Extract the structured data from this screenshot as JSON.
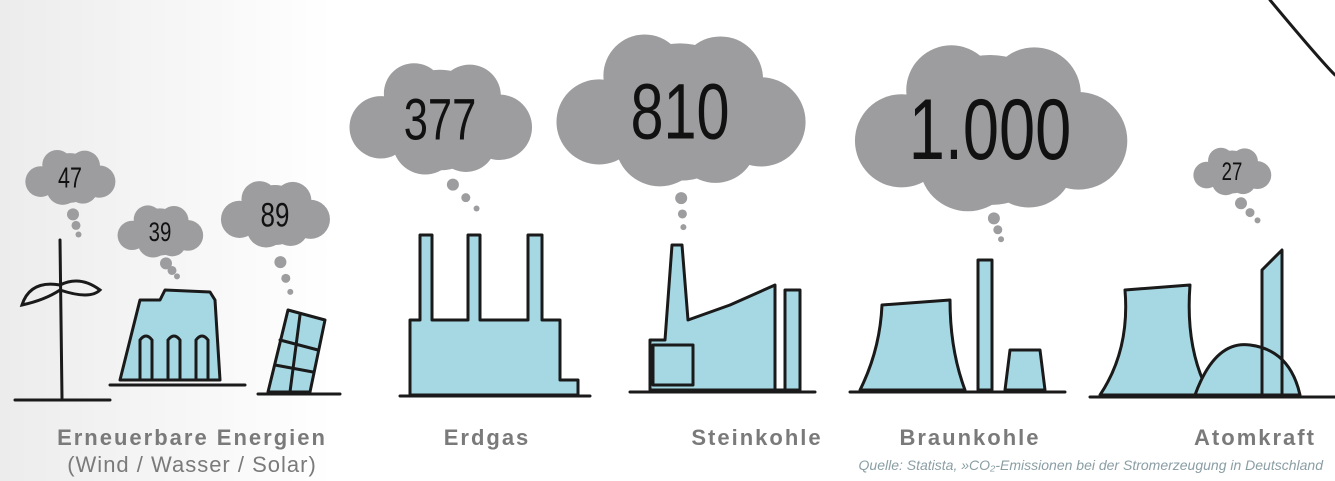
{
  "chart_data": {
    "type": "cloud-pictogram",
    "groups": [
      {
        "label": "Erneuerbare Energien",
        "sublabel": "(Wind / Wasser / Solar)",
        "values": [
          47,
          39,
          89
        ]
      },
      {
        "label": "Erdgas",
        "values": [
          377
        ]
      },
      {
        "label": "Steinkohle",
        "values": [
          810
        ]
      },
      {
        "label": "Braunkohle",
        "values": [
          1000
        ],
        "value_labels": [
          "1.000"
        ]
      },
      {
        "label": "Atomkraft",
        "values": [
          27
        ]
      }
    ],
    "color": "#9d9d9f",
    "source": "Quelle: Statista, »CO₂-Emissionen bei der Stromerzeugung in Deutschland"
  }
}
